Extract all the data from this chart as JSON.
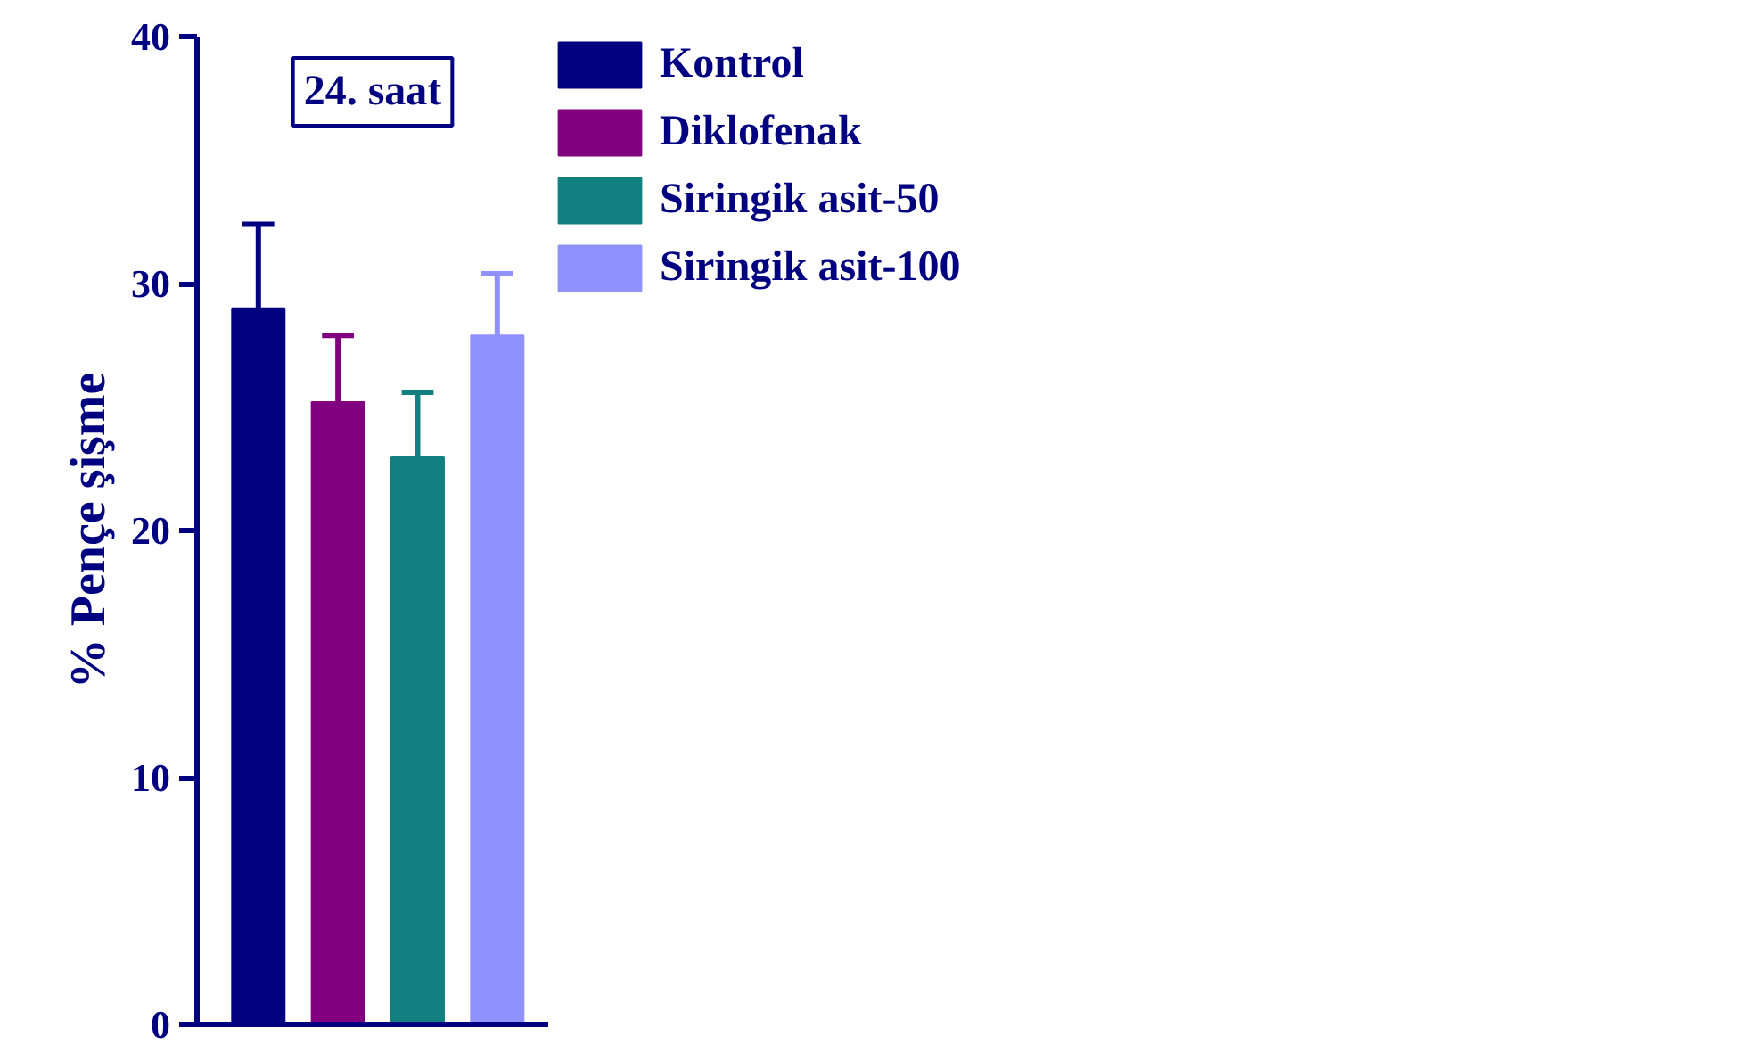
{
  "chart_data": {
    "type": "bar",
    "title": "24. saat",
    "ylabel": "% Pençe şişme",
    "categories": [
      null,
      null,
      null,
      null
    ],
    "series": [
      {
        "name": "Kontrol",
        "color": "#000080",
        "values": [
          29.0,
          null,
          null,
          null
        ],
        "errors": [
          [
            29.0,
            32.4
          ],
          null,
          null,
          null
        ]
      },
      {
        "name": "Diklofenak",
        "color": "#800080",
        "values": [
          null,
          25.2,
          null,
          null
        ],
        "errors": [
          null,
          [
            25.2,
            27.9
          ],
          null,
          null
        ]
      },
      {
        "name": "Siringik asit-50",
        "color": "#128080",
        "values": [
          null,
          null,
          23.0,
          null
        ],
        "errors": [
          null,
          null,
          [
            23.0,
            25.6
          ],
          null
        ]
      },
      {
        "name": "Siringik asit-100",
        "color": "#9090ff",
        "values": [
          null,
          null,
          null,
          27.9
        ],
        "errors": [
          null,
          null,
          null,
          [
            27.9,
            30.4
          ]
        ]
      }
    ],
    "ylim": [
      0,
      40
    ],
    "yticks": [
      0,
      10,
      20,
      30,
      40
    ],
    "grid": false,
    "legend": "right",
    "tick_labels": "y"
  }
}
